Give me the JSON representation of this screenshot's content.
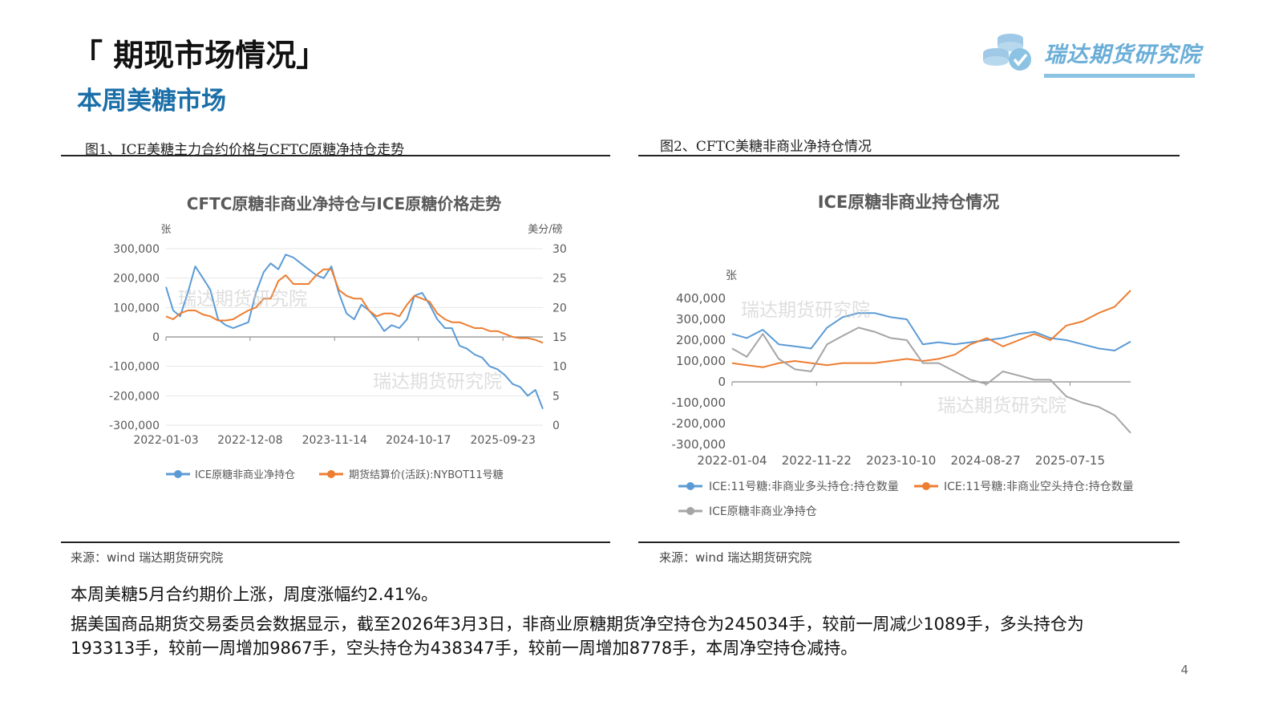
{
  "header": {
    "title": "「 期现市场情况」",
    "subtitle": "本周美糖市场",
    "logo_text": "瑞达期货研究院"
  },
  "figures": [
    {
      "caption": "图1、ICE美糖主力合约价格与CFTC原糖净持仓走势",
      "source": "来源：wind    瑞达期货研究院"
    },
    {
      "caption": "图2、CFTC美糖非商业净持仓情况",
      "source": "来源：wind    瑞达期货研究院"
    }
  ],
  "watermark": "瑞达期货研究院",
  "colors": {
    "blue": "#5b9bd5",
    "orange": "#ed7d31",
    "gray": "#a5a5a5",
    "title_blue": "#1a6fa8"
  },
  "chart_data": [
    {
      "type": "line",
      "title": "CFTC原糖非商业净持仓与ICE原糖价格走势",
      "y_unit_left": "张",
      "y_unit_right": "美分/磅",
      "ylim_left": [
        -300000,
        300000
      ],
      "ylim_right": [
        0,
        30
      ],
      "left_ticks": [
        "300,000",
        "200,000",
        "100,000",
        "0",
        "-100,000",
        "-200,000",
        "-300,000"
      ],
      "right_ticks": [
        "30",
        "25",
        "20",
        "15",
        "10",
        "5",
        "0"
      ],
      "x_labels": [
        "2022-01-03",
        "2022-12-08",
        "2023-11-14",
        "2024-10-17",
        "2025-09-23"
      ],
      "x_range": [
        "2022-01-03",
        "2026-03-03"
      ],
      "legend_position": "bottom",
      "series": [
        {
          "name": "ICE原糖非商业净持仓",
          "axis": "left",
          "x": [
            "2022-01-03",
            "2022-02-01",
            "2022-03-01",
            "2022-04-01",
            "2022-05-01",
            "2022-06-01",
            "2022-07-01",
            "2022-08-01",
            "2022-09-01",
            "2022-10-01",
            "2022-11-01",
            "2022-12-01",
            "2023-01-01",
            "2023-02-01",
            "2023-03-01",
            "2023-04-01",
            "2023-05-01",
            "2023-06-01",
            "2023-07-01",
            "2023-08-01",
            "2023-09-01",
            "2023-10-01",
            "2023-11-01",
            "2023-12-01",
            "2024-01-01",
            "2024-02-01",
            "2024-03-01",
            "2024-04-01",
            "2024-05-01",
            "2024-06-01",
            "2024-07-01",
            "2024-08-01",
            "2024-09-01",
            "2024-10-01",
            "2024-11-01",
            "2024-12-01",
            "2025-01-01",
            "2025-02-01",
            "2025-03-01",
            "2025-04-01",
            "2025-05-01",
            "2025-06-01",
            "2025-07-01",
            "2025-08-01",
            "2025-09-01",
            "2025-10-01",
            "2025-11-01",
            "2025-12-01",
            "2026-01-01",
            "2026-02-01",
            "2026-03-03"
          ],
          "values": [
            170000,
            90000,
            70000,
            150000,
            240000,
            200000,
            160000,
            60000,
            40000,
            30000,
            40000,
            50000,
            150000,
            220000,
            250000,
            230000,
            280000,
            270000,
            250000,
            230000,
            210000,
            200000,
            240000,
            150000,
            80000,
            60000,
            110000,
            90000,
            60000,
            20000,
            40000,
            30000,
            60000,
            140000,
            150000,
            110000,
            60000,
            30000,
            30000,
            -30000,
            -40000,
            -60000,
            -70000,
            -100000,
            -110000,
            -130000,
            -160000,
            -170000,
            -200000,
            -180000,
            -245034
          ]
        },
        {
          "name": "期货结算价(活跃):NYBOT11号糖",
          "axis": "right",
          "x": [
            "2022-01-03",
            "2022-02-01",
            "2022-03-01",
            "2022-04-01",
            "2022-05-01",
            "2022-06-01",
            "2022-07-01",
            "2022-08-01",
            "2022-09-01",
            "2022-10-01",
            "2022-11-01",
            "2022-12-01",
            "2023-01-01",
            "2023-02-01",
            "2023-03-01",
            "2023-04-01",
            "2023-05-01",
            "2023-06-01",
            "2023-07-01",
            "2023-08-01",
            "2023-09-01",
            "2023-10-01",
            "2023-11-01",
            "2023-12-01",
            "2024-01-01",
            "2024-02-01",
            "2024-03-01",
            "2024-04-01",
            "2024-05-01",
            "2024-06-01",
            "2024-07-01",
            "2024-08-01",
            "2024-09-01",
            "2024-10-01",
            "2024-11-01",
            "2024-12-01",
            "2025-01-01",
            "2025-02-01",
            "2025-03-01",
            "2025-04-01",
            "2025-05-01",
            "2025-06-01",
            "2025-07-01",
            "2025-08-01",
            "2025-09-01",
            "2025-10-01",
            "2025-11-01",
            "2025-12-01",
            "2026-01-01",
            "2026-02-01",
            "2026-03-03"
          ],
          "values": [
            18.5,
            18.0,
            19.0,
            19.5,
            19.5,
            18.8,
            18.5,
            17.8,
            17.8,
            18.0,
            18.8,
            19.5,
            20.0,
            21.5,
            21.5,
            24.5,
            25.5,
            24.0,
            24.0,
            24.0,
            25.5,
            26.5,
            26.5,
            23.0,
            22.0,
            21.5,
            21.5,
            19.5,
            18.5,
            19.0,
            19.0,
            18.5,
            20.5,
            22.0,
            21.5,
            21.0,
            19.0,
            18.0,
            17.5,
            17.5,
            17.0,
            16.5,
            16.5,
            16.0,
            16.0,
            15.5,
            15.0,
            14.8,
            14.8,
            14.5,
            14.0
          ]
        }
      ]
    },
    {
      "type": "line",
      "title": "ICE原糖非商业持仓情况",
      "y_unit": "张",
      "ylim": [
        -300000,
        400000
      ],
      "y_ticks": [
        "400,000",
        "300,000",
        "200,000",
        "100,000",
        "0",
        "-100,000",
        "-200,000",
        "-300,000"
      ],
      "x_labels": [
        "2022-01-04",
        "2022-11-22",
        "2023-10-10",
        "2024-08-27",
        "2025-07-15"
      ],
      "x_range": [
        "2022-01-04",
        "2026-03-03"
      ],
      "legend_position": "bottom",
      "series": [
        {
          "name": "ICE:11号糖:非商业多头持仓:持仓数量",
          "x": [
            "2022-01-04",
            "2022-03-01",
            "2022-05-01",
            "2022-07-01",
            "2022-09-01",
            "2022-11-01",
            "2023-01-01",
            "2023-03-01",
            "2023-05-01",
            "2023-07-01",
            "2023-09-01",
            "2023-11-01",
            "2024-01-01",
            "2024-03-01",
            "2024-05-01",
            "2024-07-01",
            "2024-09-01",
            "2024-11-01",
            "2025-01-01",
            "2025-03-01",
            "2025-05-01",
            "2025-07-01",
            "2025-09-01",
            "2025-11-01",
            "2026-01-01",
            "2026-03-03"
          ],
          "values": [
            230000,
            210000,
            250000,
            180000,
            170000,
            160000,
            260000,
            310000,
            330000,
            330000,
            310000,
            300000,
            180000,
            190000,
            180000,
            190000,
            200000,
            210000,
            230000,
            240000,
            210000,
            200000,
            180000,
            160000,
            150000,
            193313
          ]
        },
        {
          "name": "ICE:11号糖:非商业空头持仓:持仓数量",
          "x": [
            "2022-01-04",
            "2022-03-01",
            "2022-05-01",
            "2022-07-01",
            "2022-09-01",
            "2022-11-01",
            "2023-01-01",
            "2023-03-01",
            "2023-05-01",
            "2023-07-01",
            "2023-09-01",
            "2023-11-01",
            "2024-01-01",
            "2024-03-01",
            "2024-05-01",
            "2024-07-01",
            "2024-09-01",
            "2024-11-01",
            "2025-01-01",
            "2025-03-01",
            "2025-05-01",
            "2025-07-01",
            "2025-09-01",
            "2025-11-01",
            "2026-01-01",
            "2026-03-03"
          ],
          "values": [
            90000,
            80000,
            70000,
            90000,
            100000,
            90000,
            80000,
            90000,
            90000,
            90000,
            100000,
            110000,
            100000,
            110000,
            130000,
            180000,
            210000,
            170000,
            200000,
            230000,
            200000,
            270000,
            290000,
            330000,
            360000,
            438347
          ]
        },
        {
          "name": "ICE原糖非商业净持仓",
          "x": [
            "2022-01-04",
            "2022-03-01",
            "2022-05-01",
            "2022-07-01",
            "2022-09-01",
            "2022-11-01",
            "2023-01-01",
            "2023-03-01",
            "2023-05-01",
            "2023-07-01",
            "2023-09-01",
            "2023-11-01",
            "2024-01-01",
            "2024-03-01",
            "2024-05-01",
            "2024-07-01",
            "2024-09-01",
            "2024-11-01",
            "2025-01-01",
            "2025-03-01",
            "2025-05-01",
            "2025-07-01",
            "2025-09-01",
            "2025-11-01",
            "2026-01-01",
            "2026-03-03"
          ],
          "values": [
            160000,
            120000,
            230000,
            110000,
            60000,
            50000,
            180000,
            220000,
            260000,
            240000,
            210000,
            200000,
            90000,
            90000,
            50000,
            10000,
            -10000,
            50000,
            30000,
            10000,
            10000,
            -70000,
            -100000,
            -120000,
            -160000,
            -245034
          ]
        }
      ]
    }
  ],
  "body": {
    "line1": "本周美糖5月合约期价上涨，周度涨幅约2.41%。",
    "line2": "据美国商品期货交易委员会数据显示，截至2026年3月3日，非商业原糖期货净空持仓为245034手，较前一周减少1089手，多头持仓为193313手，较前一周增加9867手，空头持仓为438347手，较前一周增加8778手，本周净空持仓减持。"
  },
  "page_number": "4"
}
